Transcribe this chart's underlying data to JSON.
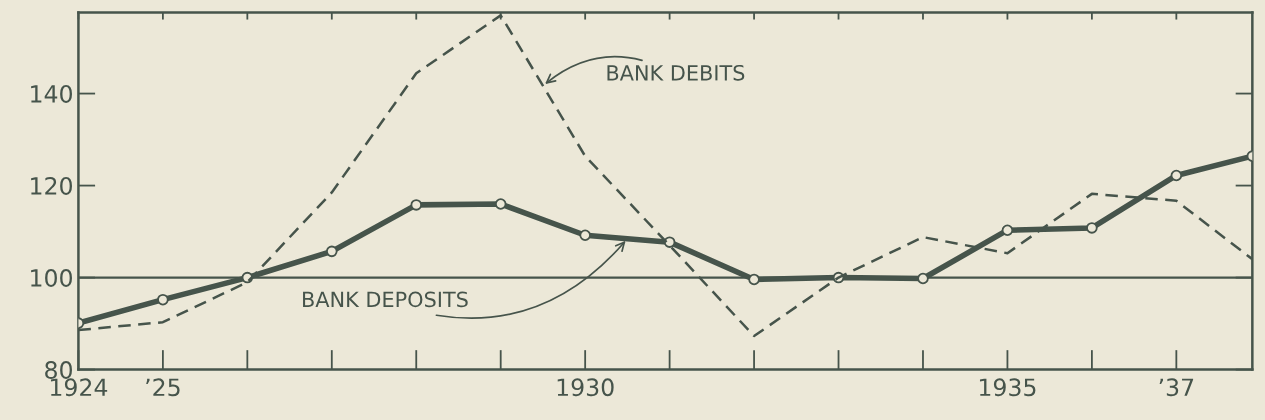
{
  "chart_data": {
    "type": "line",
    "x": [
      1924,
      1925,
      1926,
      1927,
      1928,
      1929,
      1930,
      1931,
      1932,
      1933,
      1934,
      1935,
      1936,
      1937,
      1937.9
    ],
    "series": [
      {
        "name": "BANK DEPOSITS",
        "color": "#46544b",
        "marker": "circle",
        "line_style": "solid",
        "values": [
          90.1,
          95.2,
          100,
          105.7,
          115.8,
          116,
          109.2,
          107.7,
          99.6,
          100,
          99.8,
          110.3,
          110.8,
          122.2,
          126.4
        ]
      },
      {
        "name": "BANK DEBITS",
        "color": "#46544b",
        "marker": "none",
        "line_style": "dashed",
        "values": [
          88.6,
          90.3,
          99,
          118.5,
          144.4,
          157,
          126.4,
          107,
          87.3,
          100,
          108.8,
          105.3,
          118.2,
          116.7,
          104
        ]
      }
    ],
    "xlim": [
      1924,
      1937.9
    ],
    "xticks": [
      {
        "value": 1924,
        "label": "1924"
      },
      {
        "value": 1925,
        "label": "’25"
      },
      {
        "value": 1926,
        "label": null
      },
      {
        "value": 1927,
        "label": null
      },
      {
        "value": 1928,
        "label": null
      },
      {
        "value": 1929,
        "label": null
      },
      1930,
      {
        "value": 1931,
        "label": null
      },
      {
        "value": 1932,
        "label": null
      },
      {
        "value": 1933,
        "label": null
      },
      {
        "value": 1934,
        "label": null
      },
      1935,
      {
        "value": 1936,
        "label": null
      },
      {
        "value": 1937,
        "label": "’37"
      }
    ],
    "ylim": [
      80,
      157.6
    ],
    "yticks": [
      80,
      100,
      120,
      140
    ],
    "ref_lines": [
      {
        "axis": "y",
        "value": 100,
        "color": "#46544b"
      }
    ],
    "grid": false,
    "legend": false
  }
}
